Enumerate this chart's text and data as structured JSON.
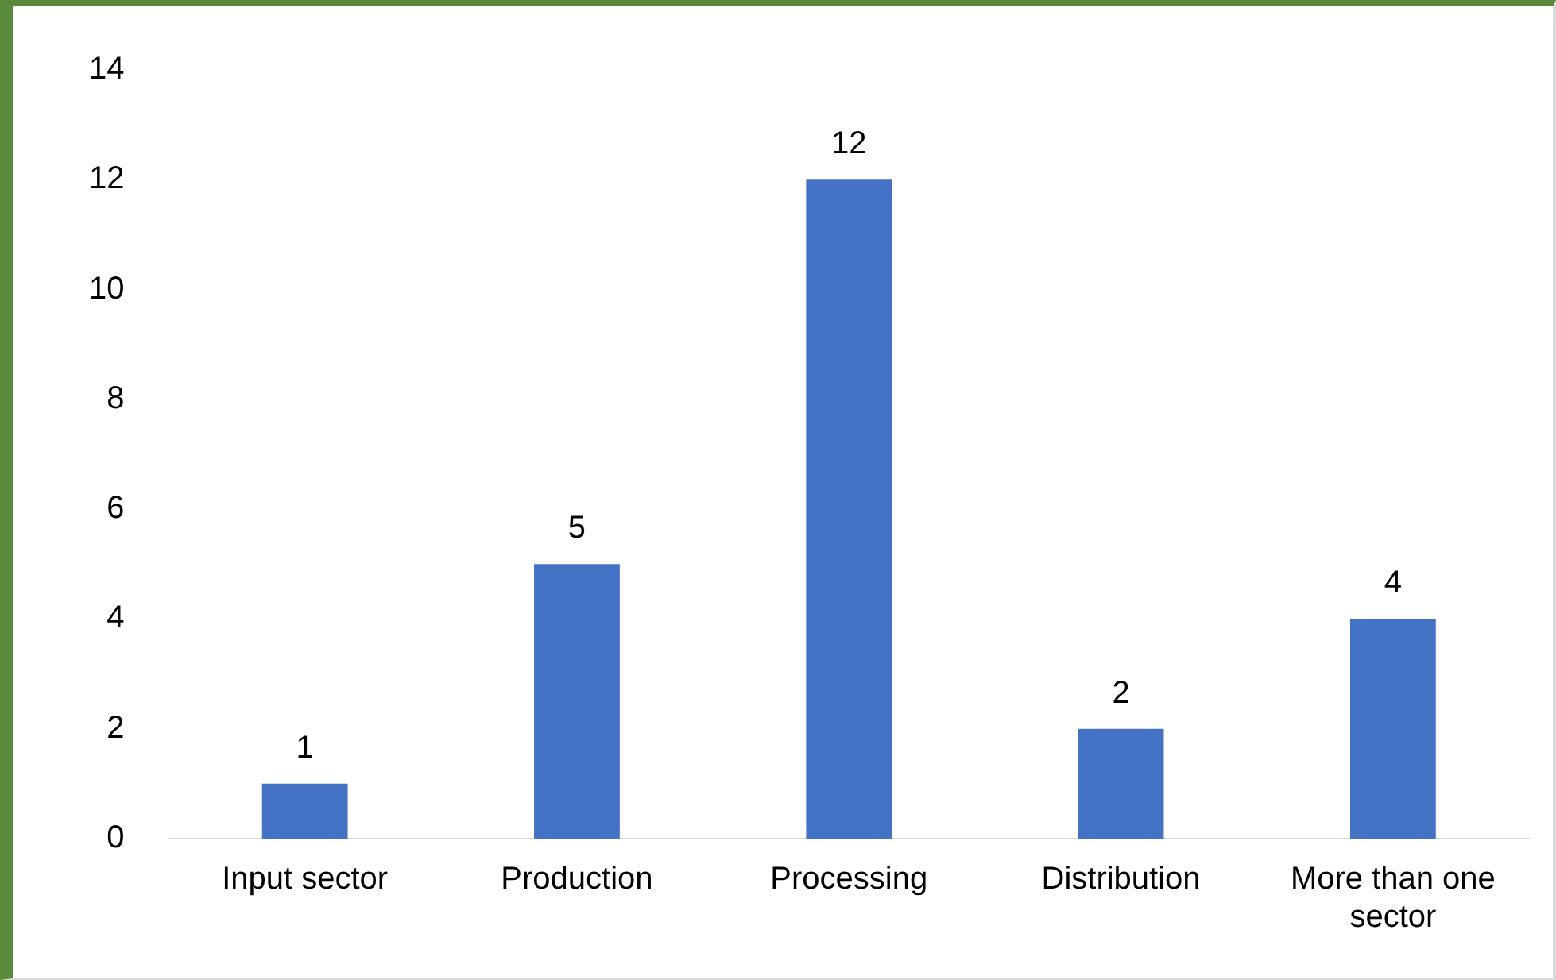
{
  "chart_data": {
    "type": "bar",
    "categories": [
      "Input sector",
      "Production",
      "Processing",
      "Distribution",
      "More than one sector"
    ],
    "values": [
      1,
      5,
      12,
      2,
      4
    ],
    "color": "#4472c4",
    "ylim": [
      0,
      14
    ],
    "yticks": [
      0,
      2,
      4,
      6,
      8,
      10,
      12,
      14
    ],
    "grid": false,
    "legend": false,
    "data_labels": true
  }
}
